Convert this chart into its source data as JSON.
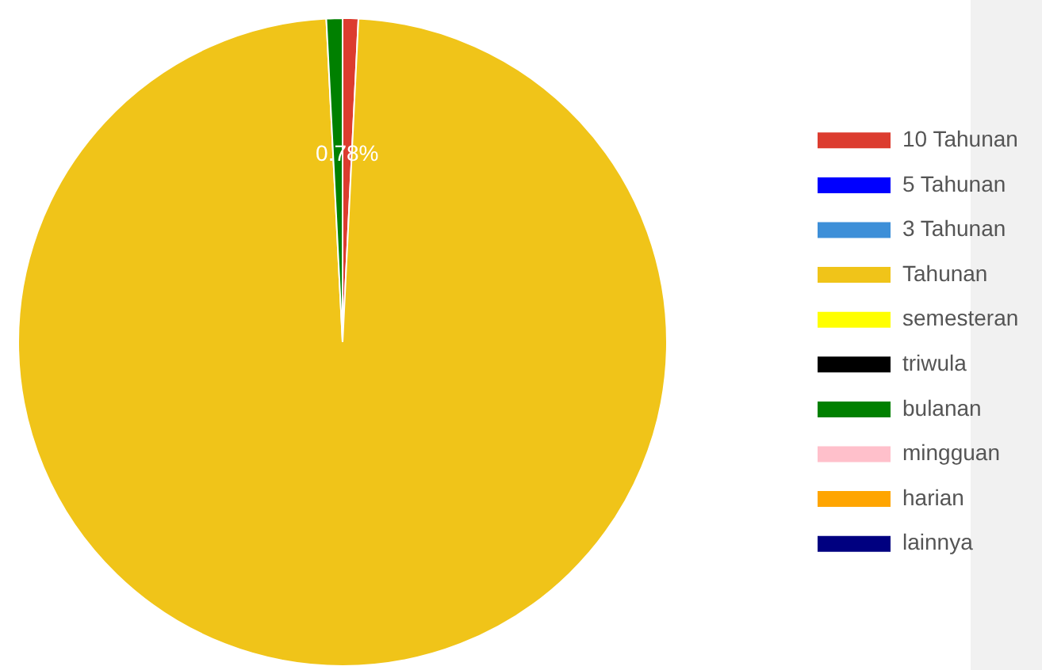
{
  "chart_data": {
    "type": "pie",
    "categories": [
      "10 Tahunan",
      "5 Tahunan",
      "3 Tahunan",
      "Tahunan",
      "semesteran",
      "triwula",
      "bulanan",
      "mingguan",
      "harian",
      "lainnya"
    ],
    "values": [
      0.78,
      0,
      0,
      98.42,
      0,
      0,
      0.8,
      0,
      0,
      0
    ],
    "colors": [
      "#dc3c2f",
      "#0000ff",
      "#3d8fd8",
      "#f0c419",
      "#ffff00",
      "#000000",
      "#008000",
      "#ffc0cb",
      "#ffa500",
      "#000080"
    ],
    "value_labels": [
      "0.78%",
      null,
      null,
      null,
      null,
      null,
      null,
      null,
      null,
      null
    ],
    "legend": "right"
  }
}
